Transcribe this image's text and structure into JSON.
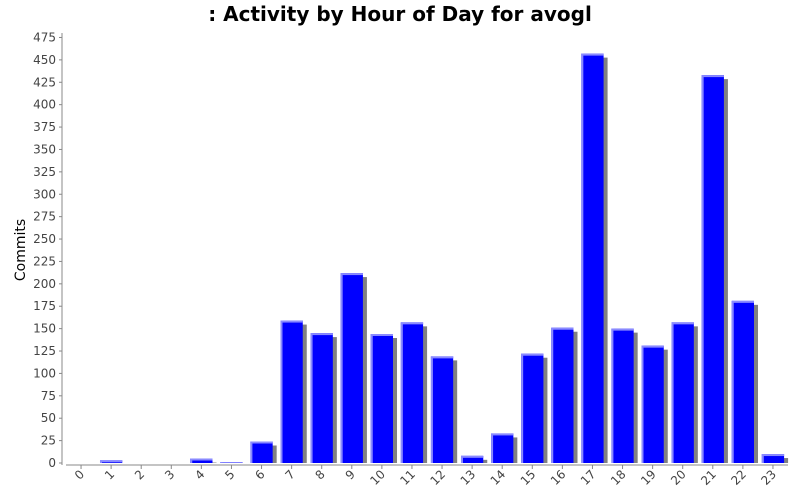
{
  "chart_data": {
    "type": "bar",
    "title": ": Activity by Hour of Day for avogl",
    "xlabel": "",
    "ylabel": "Commits",
    "ylim": [
      0,
      480
    ],
    "yticks": [
      0,
      25,
      50,
      75,
      100,
      125,
      150,
      175,
      200,
      225,
      250,
      275,
      300,
      325,
      350,
      375,
      400,
      425,
      450,
      475
    ],
    "categories": [
      "0",
      "1",
      "2",
      "3",
      "4",
      "5",
      "6",
      "7",
      "8",
      "9",
      "10",
      "11",
      "12",
      "13",
      "14",
      "15",
      "16",
      "17",
      "18",
      "19",
      "20",
      "21",
      "22",
      "23"
    ],
    "values": [
      0,
      3,
      0,
      0,
      5,
      1,
      24,
      159,
      145,
      212,
      144,
      157,
      119,
      8,
      33,
      122,
      151,
      457,
      150,
      131,
      157,
      433,
      181,
      10
    ],
    "colors": {
      "bar": "#0000ff",
      "bar_highlight": "#8a8aff",
      "shadow": "#808080",
      "axis": "#888888",
      "tick_text": "#444444"
    },
    "grid": false,
    "legend": "none"
  }
}
